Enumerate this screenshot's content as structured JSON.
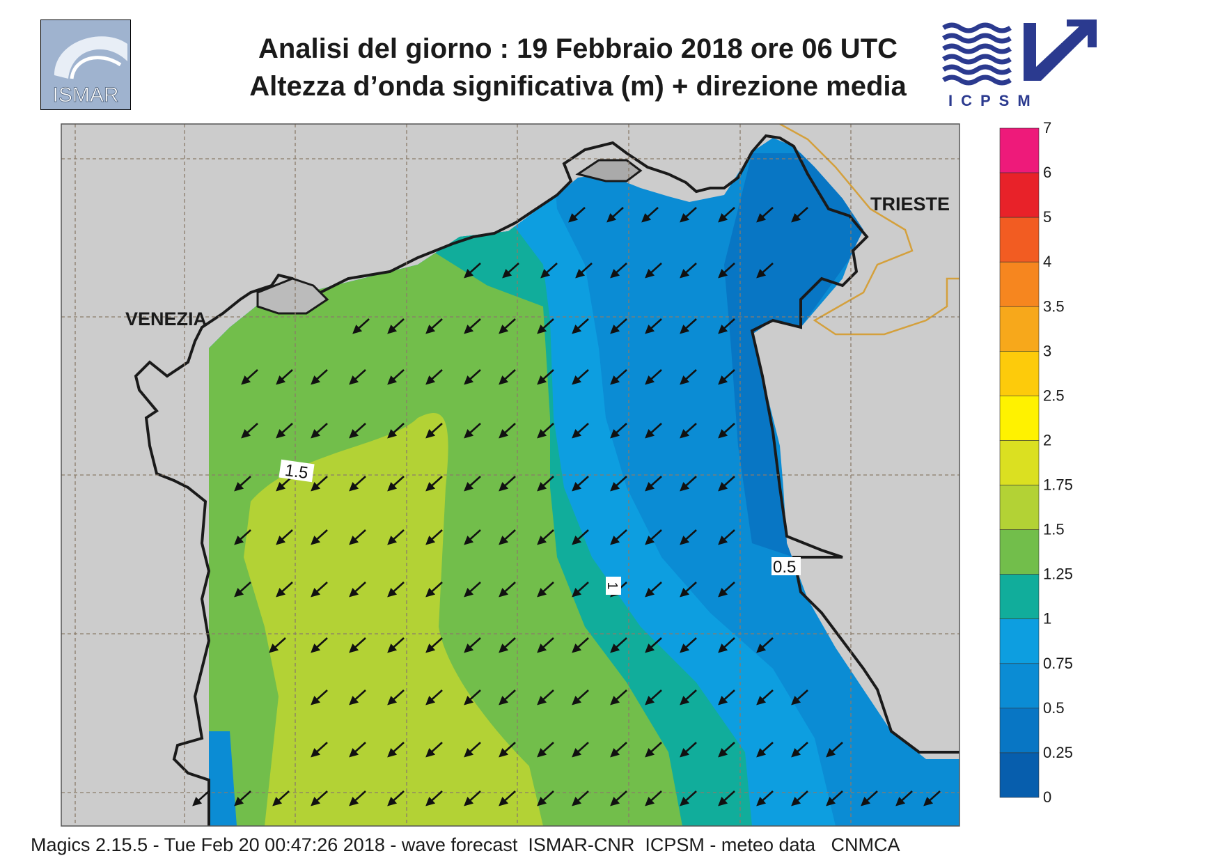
{
  "title": {
    "line1": "Analisi del giorno :  19  Febbraio 2018   ore 06 UTC",
    "line2": "Altezza d’onda significativa (m) + direzione media"
  },
  "logos": {
    "left": "ISMAR",
    "right": "ICPSM"
  },
  "map": {
    "place_labels": [
      "VENEZIA",
      "TRIESTE"
    ],
    "contour_labels": [
      "1.5",
      "1",
      "0.5"
    ],
    "land_color": "#cccccc",
    "coast_color": "#1a1a1a",
    "border_color": "#d4a03c",
    "wave_direction": "south-west"
  },
  "legend": {
    "levels": [
      "7",
      "6",
      "5",
      "4",
      "3.5",
      "3",
      "2.5",
      "2",
      "1.75",
      "1.5",
      "1.25",
      "1",
      "0.75",
      "0.5",
      "0.25",
      "0"
    ],
    "colors": [
      "#ee1a7a",
      "#e82229",
      "#f25c22",
      "#f6861f",
      "#f7a81b",
      "#fdcb0b",
      "#fff200",
      "#dbe021",
      "#b3d235",
      "#72be4b",
      "#11ad9b",
      "#0d9ee0",
      "#0b8cd4",
      "#0876c4",
      "#075ead"
    ]
  },
  "footer": "Magics 2.15.5 - Tue Feb 20 00:47:26 2018 - wave forecast  ISMAR-CNR  ICPSM - meteo data   CNMCA"
}
